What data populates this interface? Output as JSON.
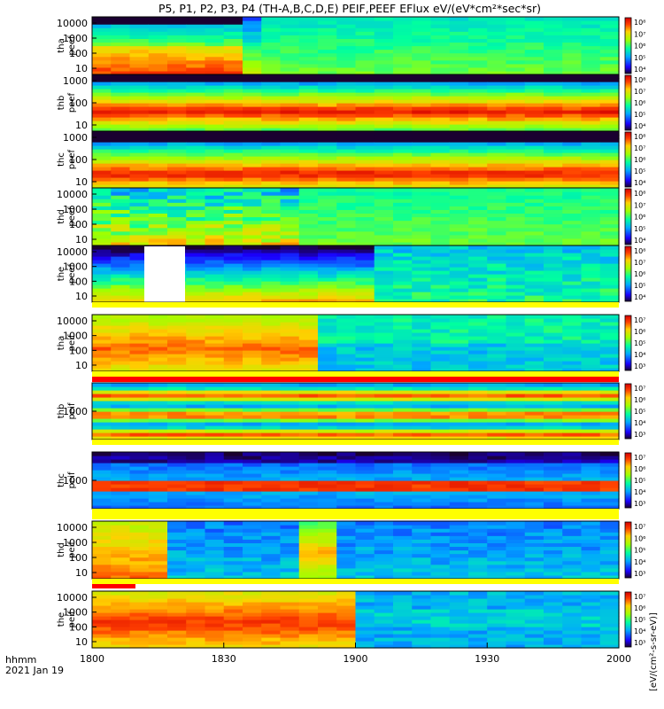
{
  "chart_data": {
    "type": "heatmap",
    "title": "P5, P1, P2, P3, P4 (TH-A,B,C,D,E) PEIF,PEEF EFlux eV/(eV*cm²*sec*sr)",
    "x_axis": {
      "label": "hhmm",
      "date": "2021 Jan 19",
      "ticks": [
        "1800",
        "1830",
        "1900",
        "1930",
        "2000"
      ]
    },
    "panels": [
      {
        "probe": "tha",
        "product": "peef",
        "ylabel": [
          "tha",
          "peef"
        ],
        "yticks": [
          "10",
          "100",
          "1000",
          "10000"
        ],
        "cbar_ticks": [
          "10⁴",
          "10⁵",
          "10⁶",
          "10⁷",
          "10⁸"
        ]
      },
      {
        "probe": "thb",
        "product": "peef",
        "ylabel": [
          "thb",
          "peef"
        ],
        "yticks": [
          "10",
          "100",
          "1000"
        ],
        "cbar_ticks": [
          "10⁴",
          "10⁵",
          "10⁶",
          "10⁷",
          "10⁸"
        ]
      },
      {
        "probe": "thc",
        "product": "peef",
        "ylabel": [
          "thc",
          "peef"
        ],
        "yticks": [
          "10",
          "100",
          "1000"
        ],
        "cbar_ticks": [
          "10⁴",
          "10⁵",
          "10⁶",
          "10⁷",
          "10⁸"
        ]
      },
      {
        "probe": "thd",
        "product": "peef",
        "ylabel": [
          "thd",
          "peef"
        ],
        "yticks": [
          "10",
          "100",
          "1000",
          "10000"
        ],
        "cbar_ticks": [
          "10⁴",
          "10⁵",
          "10⁶",
          "10⁷",
          "10⁸"
        ]
      },
      {
        "probe": "the",
        "product": "peef",
        "ylabel": [
          "the",
          "peef"
        ],
        "yticks": [
          "10",
          "100",
          "1000",
          "10000"
        ],
        "cbar_ticks": [
          "10⁴",
          "10⁵",
          "10⁶",
          "10⁷",
          "10⁸"
        ]
      },
      {
        "probe": "tha",
        "product": "peif",
        "ylabel": [
          "tha",
          "peif"
        ],
        "yticks": [
          "10",
          "100",
          "1000",
          "10000"
        ],
        "cbar_ticks": [
          "10³",
          "10⁴",
          "10⁵",
          "10⁶",
          "10⁷"
        ]
      },
      {
        "probe": "thb",
        "product": "peif",
        "ylabel": [
          "thb",
          "peif"
        ],
        "yticks": [
          "1000"
        ],
        "cbar_ticks": [
          "10³",
          "10⁴",
          "10⁵",
          "10⁶",
          "10⁷"
        ]
      },
      {
        "probe": "thc",
        "product": "peif",
        "ylabel": [
          "thc",
          "peif"
        ],
        "yticks": [
          "1000"
        ],
        "cbar_ticks": [
          "10³",
          "10⁴",
          "10⁵",
          "10⁶",
          "10⁷"
        ]
      },
      {
        "probe": "thd",
        "product": "peif",
        "ylabel": [
          "thd",
          "peif"
        ],
        "yticks": [
          "10",
          "100",
          "1000",
          "10000"
        ],
        "cbar_ticks": [
          "10³",
          "10⁴",
          "10⁵",
          "10⁶",
          "10⁷"
        ]
      },
      {
        "probe": "the",
        "product": "peif",
        "ylabel": [
          "the",
          "peif"
        ],
        "yticks": [
          "10",
          "100",
          "1000",
          "10000"
        ],
        "cbar_ticks": [
          "10³",
          "10⁴",
          "10⁵",
          "10⁶",
          "10⁷"
        ]
      }
    ],
    "colorbar_label": "[eV/(cm²-s-sr-eV)]"
  }
}
